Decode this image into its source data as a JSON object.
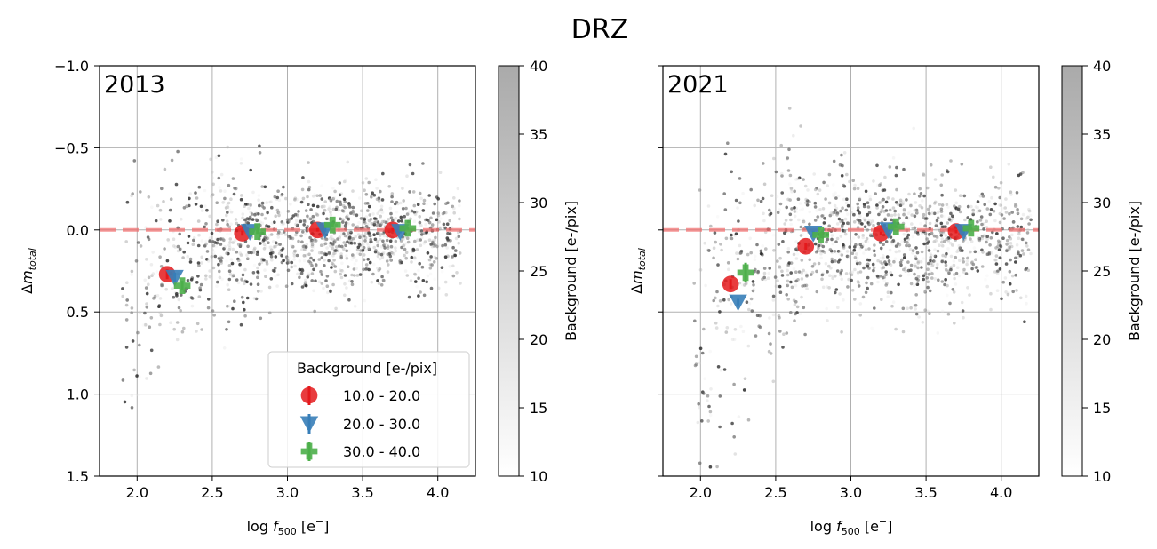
{
  "figure": {
    "title": "DRZ"
  },
  "colors": {
    "red": "#e41a1c",
    "blue": "#377eb8",
    "green": "#4daf4a",
    "dashed_line": "#f26b6b",
    "grid": "#b0b0b0"
  },
  "chart_data": [
    {
      "type": "scatter",
      "panel_label": "2013",
      "xlabel": "log f500 [e-]",
      "xlabel_main": "log ",
      "xlabel_f": "f",
      "xlabel_sub": "500",
      "xlabel_unit": " [e",
      "xlabel_sup": "−",
      "xlabel_close": "]",
      "ylabel": "Δm_total",
      "ylabel_delta": "Δ",
      "ylabel_m": "m",
      "ylabel_sub": "total",
      "xlim": [
        1.75,
        4.25
      ],
      "ylim": [
        -1.0,
        1.5
      ],
      "y_inverted": true,
      "xticks": [
        2.0,
        2.5,
        3.0,
        3.5,
        4.0
      ],
      "xtick_labels": [
        "2.0",
        "2.5",
        "3.0",
        "3.5",
        "4.0"
      ],
      "yticks": [
        -1.0,
        -0.5,
        0.0,
        0.5,
        1.0,
        1.5
      ],
      "ytick_labels": [
        "−1.0",
        "−0.5",
        "0.0",
        "0.5",
        "1.0",
        "1.5"
      ],
      "grid": true,
      "reference_line_y": 0.0,
      "colorbar": {
        "label": "Background [e-/pix]",
        "range": [
          10,
          40
        ],
        "ticks": [
          10,
          15,
          20,
          25,
          30,
          35,
          40
        ],
        "tick_labels": [
          "10",
          "15",
          "20",
          "25",
          "30",
          "35",
          "40"
        ]
      },
      "legend": {
        "title": "Background [e-/pix]",
        "location": "lower-right",
        "entries": [
          "10.0 - 20.0",
          "20.0 - 30.0",
          "30.0 - 40.0"
        ]
      },
      "background_scatter": {
        "seed": 7,
        "count": 1300,
        "x_range": [
          1.9,
          4.15
        ],
        "center_line": 0.05,
        "bias_low_end": 0.38,
        "spread": 0.16
      },
      "series": [
        {
          "name": "10.0 - 20.0",
          "marker": "circle",
          "color_key": "red",
          "x": [
            2.2,
            2.7,
            3.2,
            3.7
          ],
          "y": [
            0.27,
            0.02,
            0.0,
            0.0
          ],
          "yerr": [
            0.03,
            0.015,
            0.01,
            0.01
          ]
        },
        {
          "name": "20.0 - 30.0",
          "marker": "triangle-down",
          "color_key": "blue",
          "x": [
            2.25,
            2.75,
            3.25,
            3.75
          ],
          "y": [
            0.29,
            0.01,
            0.0,
            0.01
          ],
          "yerr": [
            0.03,
            0.015,
            0.01,
            0.01
          ]
        },
        {
          "name": "30.0 - 40.0",
          "marker": "plus",
          "color_key": "green",
          "x": [
            2.3,
            2.8,
            3.3,
            3.8
          ],
          "y": [
            0.34,
            0.01,
            -0.03,
            -0.01
          ],
          "yerr": [
            0.03,
            0.015,
            0.01,
            0.01
          ]
        }
      ]
    },
    {
      "type": "scatter",
      "panel_label": "2021",
      "xlabel": "log f500 [e-]",
      "xlabel_main": "log ",
      "xlabel_f": "f",
      "xlabel_sub": "500",
      "xlabel_unit": " [e",
      "xlabel_sup": "−",
      "xlabel_close": "]",
      "ylabel": "Δm_total",
      "ylabel_delta": "Δ",
      "ylabel_m": "m",
      "ylabel_sub": "total",
      "xlim": [
        1.75,
        4.25
      ],
      "ylim": [
        -1.0,
        1.5
      ],
      "y_inverted": true,
      "xticks": [
        2.0,
        2.5,
        3.0,
        3.5,
        4.0
      ],
      "xtick_labels": [
        "2.0",
        "2.5",
        "3.0",
        "3.5",
        "4.0"
      ],
      "yticks": [
        -1.0,
        -0.5,
        0.0,
        0.5,
        1.0,
        1.5
      ],
      "ytick_labels": [
        "",
        "",
        "",
        "",
        "",
        ""
      ],
      "grid": true,
      "reference_line_y": 0.0,
      "colorbar": {
        "label": "Background [e-/pix]",
        "range": [
          10,
          40
        ],
        "ticks": [
          10,
          15,
          20,
          25,
          30,
          35,
          40
        ],
        "tick_labels": [
          "10",
          "15",
          "20",
          "25",
          "30",
          "35",
          "40"
        ]
      },
      "background_scatter": {
        "seed": 13,
        "count": 1300,
        "x_range": [
          1.95,
          4.2
        ],
        "center_line": 0.05,
        "bias_low_end": 0.6,
        "spread": 0.2
      },
      "series": [
        {
          "name": "10.0 - 20.0",
          "marker": "circle",
          "color_key": "red",
          "x": [
            2.2,
            2.7,
            3.2,
            3.7
          ],
          "y": [
            0.33,
            0.1,
            0.02,
            0.01
          ],
          "yerr": [
            0.03,
            0.02,
            0.01,
            0.01
          ]
        },
        {
          "name": "20.0 - 30.0",
          "marker": "triangle-down",
          "color_key": "blue",
          "x": [
            2.25,
            2.75,
            3.25,
            3.75
          ],
          "y": [
            0.44,
            0.02,
            0.0,
            0.01
          ],
          "yerr": [
            0.02,
            0.015,
            0.01,
            0.01
          ]
        },
        {
          "name": "30.0 - 40.0",
          "marker": "plus",
          "color_key": "green",
          "x": [
            2.3,
            2.8,
            3.3,
            3.8
          ],
          "y": [
            0.26,
            0.03,
            -0.02,
            -0.01
          ],
          "yerr": [
            0.06,
            0.02,
            0.01,
            0.01
          ]
        }
      ]
    }
  ]
}
